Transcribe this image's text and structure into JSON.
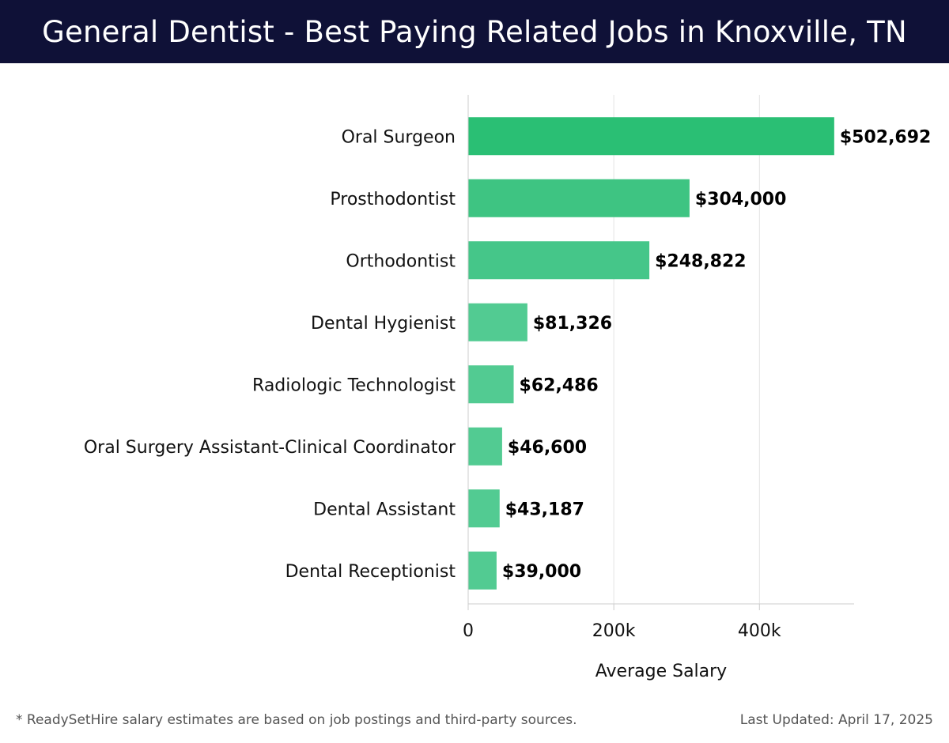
{
  "header": {
    "title": "General Dentist - Best Paying Related Jobs in Knoxville, TN"
  },
  "chart_data": {
    "type": "bar",
    "orientation": "horizontal",
    "title": "General Dentist - Best Paying Related Jobs in Knoxville, TN",
    "categories": [
      "Oral Surgeon",
      "Prosthodontist",
      "Orthodontist",
      "Dental Hygienist",
      "Radiologic Technologist",
      "Oral Surgery Assistant-Clinical Coordinator",
      "Dental Assistant",
      "Dental Receptionist"
    ],
    "values": [
      502692,
      304000,
      248822,
      81326,
      62486,
      46600,
      43187,
      39000
    ],
    "value_labels": [
      "$502,692",
      "$304,000",
      "$248,822",
      "$81,326",
      "$62,486",
      "$46,600",
      "$43,187",
      "$39,000"
    ],
    "xlabel": "Average Salary",
    "ylabel": "",
    "xlim": [
      0,
      530000
    ],
    "xticks": [
      0,
      200000,
      400000
    ],
    "xtick_labels": [
      "0",
      "200k",
      "400k"
    ],
    "grid": true,
    "colors": {
      "top_bar": "#2abf74",
      "second_bar": "#3ec482",
      "third_bar": "#45c689",
      "other_bars": "#52cb92",
      "grid": "#e3e3e3",
      "axis": "#cccccc"
    }
  },
  "footer": {
    "note": "* ReadySetHire salary estimates are based on job postings and third-party sources.",
    "updated": "Last Updated: April 17, 2025"
  }
}
